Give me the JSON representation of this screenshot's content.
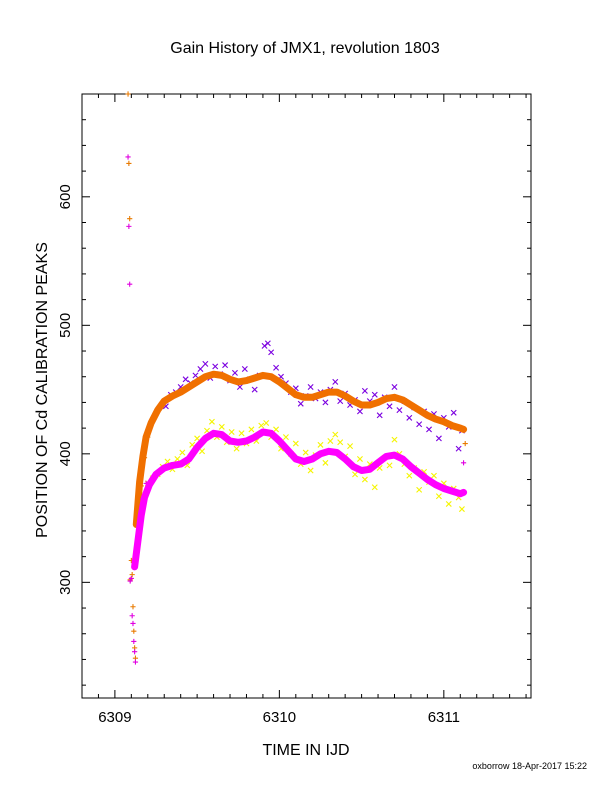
{
  "chart_data": {
    "type": "scatter",
    "title": "Gain History of JMX1, revolution 1803",
    "xlabel": "TIME IN IJD",
    "ylabel": "POSITION OF Cd CALIBRATION PEAKS",
    "xlim": [
      6308.8,
      6311.53
    ],
    "ylim": [
      210,
      680
    ],
    "x_ticks": [
      6309,
      6310,
      6311
    ],
    "x_tick_labels": [
      "6309",
      "6310",
      "6311"
    ],
    "y_ticks": [
      300,
      400,
      500,
      600
    ],
    "y_tick_labels": [
      "300",
      "400",
      "500",
      "600"
    ],
    "grid": false,
    "footer": "oxborrow 18-Apr-2017 15:22",
    "series": [
      {
        "marker": "cross",
        "color": "#7b00e0",
        "points": [
          [
            6309.31,
            437
          ],
          [
            6309.34,
            446
          ],
          [
            6309.37,
            448
          ],
          [
            6309.4,
            452
          ],
          [
            6309.43,
            458
          ],
          [
            6309.46,
            455
          ],
          [
            6309.49,
            461
          ],
          [
            6309.52,
            466
          ],
          [
            6309.55,
            470
          ],
          [
            6309.58,
            459
          ],
          [
            6309.61,
            468
          ],
          [
            6309.64,
            462
          ],
          [
            6309.67,
            469
          ],
          [
            6309.7,
            457
          ],
          [
            6309.73,
            463
          ],
          [
            6309.76,
            452
          ],
          [
            6309.79,
            466
          ],
          [
            6309.82,
            458
          ],
          [
            6309.85,
            450
          ],
          [
            6309.88,
            461
          ],
          [
            6309.91,
            484
          ],
          [
            6309.93,
            486
          ],
          [
            6309.95,
            479
          ],
          [
            6309.98,
            467
          ],
          [
            6310.01,
            460
          ],
          [
            6310.04,
            455
          ],
          [
            6310.07,
            448
          ],
          [
            6310.1,
            451
          ],
          [
            6310.13,
            439
          ],
          [
            6310.16,
            445
          ],
          [
            6310.19,
            452
          ],
          [
            6310.22,
            443
          ],
          [
            6310.25,
            448
          ],
          [
            6310.28,
            440
          ],
          [
            6310.31,
            450
          ],
          [
            6310.34,
            456
          ],
          [
            6310.37,
            441
          ],
          [
            6310.4,
            447
          ],
          [
            6310.43,
            438
          ],
          [
            6310.46,
            442
          ],
          [
            6310.49,
            433
          ],
          [
            6310.52,
            449
          ],
          [
            6310.55,
            441
          ],
          [
            6310.58,
            446
          ],
          [
            6310.61,
            430
          ],
          [
            6310.64,
            444
          ],
          [
            6310.67,
            437
          ],
          [
            6310.7,
            452
          ],
          [
            6310.73,
            434
          ],
          [
            6310.76,
            441
          ],
          [
            6310.79,
            428
          ],
          [
            6310.82,
            436
          ],
          [
            6310.85,
            423
          ],
          [
            6310.88,
            433
          ],
          [
            6310.91,
            419
          ],
          [
            6310.94,
            431
          ],
          [
            6310.97,
            412
          ],
          [
            6311.0,
            428
          ],
          [
            6311.03,
            421
          ],
          [
            6311.06,
            432
          ],
          [
            6311.09,
            404
          ],
          [
            6311.11,
            418
          ]
        ]
      },
      {
        "marker": "plus",
        "color": "#e87a00",
        "points": [
          [
            6309.08,
            680
          ],
          [
            6309.085,
            626
          ],
          [
            6309.09,
            583
          ],
          [
            6309.093,
            302
          ],
          [
            6309.1,
            317
          ],
          [
            6309.105,
            306
          ],
          [
            6309.11,
            281
          ],
          [
            6309.115,
            262
          ],
          [
            6309.12,
            249
          ],
          [
            6309.125,
            241
          ],
          [
            6309.14,
            350
          ],
          [
            6309.16,
            375
          ],
          [
            6309.18,
            397
          ],
          [
            6309.2,
            413
          ],
          [
            6309.22,
            425
          ],
          [
            6311.13,
            408
          ]
        ]
      },
      {
        "marker": "line",
        "color": "#f07000",
        "points": [
          [
            6309.13,
            345
          ],
          [
            6309.15,
            378
          ],
          [
            6309.17,
            398
          ],
          [
            6309.19,
            413
          ],
          [
            6309.22,
            424
          ],
          [
            6309.26,
            434
          ],
          [
            6309.3,
            441
          ],
          [
            6309.35,
            445
          ],
          [
            6309.4,
            448
          ],
          [
            6309.45,
            452
          ],
          [
            6309.5,
            456
          ],
          [
            6309.55,
            460
          ],
          [
            6309.6,
            462
          ],
          [
            6309.65,
            461
          ],
          [
            6309.7,
            458
          ],
          [
            6309.75,
            456
          ],
          [
            6309.8,
            457
          ],
          [
            6309.85,
            459
          ],
          [
            6309.9,
            461
          ],
          [
            6309.95,
            460
          ],
          [
            6310.0,
            456
          ],
          [
            6310.05,
            451
          ],
          [
            6310.1,
            446
          ],
          [
            6310.15,
            444
          ],
          [
            6310.2,
            444
          ],
          [
            6310.25,
            446
          ],
          [
            6310.3,
            448
          ],
          [
            6310.35,
            448
          ],
          [
            6310.4,
            445
          ],
          [
            6310.45,
            441
          ],
          [
            6310.5,
            438
          ],
          [
            6310.55,
            438
          ],
          [
            6310.6,
            440
          ],
          [
            6310.65,
            443
          ],
          [
            6310.7,
            444
          ],
          [
            6310.75,
            442
          ],
          [
            6310.8,
            438
          ],
          [
            6310.85,
            434
          ],
          [
            6310.9,
            430
          ],
          [
            6310.95,
            427
          ],
          [
            6311.0,
            425
          ],
          [
            6311.05,
            422
          ],
          [
            6311.1,
            420
          ],
          [
            6311.12,
            419
          ]
        ]
      },
      {
        "marker": "cross",
        "color": "#f5f500",
        "points": [
          [
            6309.2,
            377
          ],
          [
            6309.23,
            381
          ],
          [
            6309.26,
            384
          ],
          [
            6309.29,
            390
          ],
          [
            6309.32,
            394
          ],
          [
            6309.35,
            388
          ],
          [
            6309.38,
            396
          ],
          [
            6309.41,
            401
          ],
          [
            6309.44,
            391
          ],
          [
            6309.47,
            407
          ],
          [
            6309.5,
            412
          ],
          [
            6309.53,
            402
          ],
          [
            6309.56,
            418
          ],
          [
            6309.59,
            425
          ],
          [
            6309.62,
            413
          ],
          [
            6309.65,
            421
          ],
          [
            6309.68,
            409
          ],
          [
            6309.71,
            417
          ],
          [
            6309.74,
            404
          ],
          [
            6309.77,
            416
          ],
          [
            6309.8,
            408
          ],
          [
            6309.83,
            419
          ],
          [
            6309.86,
            410
          ],
          [
            6309.89,
            422
          ],
          [
            6309.92,
            424
          ],
          [
            6309.95,
            413
          ],
          [
            6309.98,
            419
          ],
          [
            6310.01,
            404
          ],
          [
            6310.04,
            413
          ],
          [
            6310.07,
            400
          ],
          [
            6310.1,
            408
          ],
          [
            6310.13,
            392
          ],
          [
            6310.16,
            401
          ],
          [
            6310.19,
            387
          ],
          [
            6310.22,
            399
          ],
          [
            6310.25,
            407
          ],
          [
            6310.28,
            393
          ],
          [
            6310.31,
            410
          ],
          [
            6310.34,
            415
          ],
          [
            6310.37,
            409
          ],
          [
            6310.4,
            398
          ],
          [
            6310.43,
            406
          ],
          [
            6310.46,
            384
          ],
          [
            6310.49,
            396
          ],
          [
            6310.52,
            380
          ],
          [
            6310.55,
            392
          ],
          [
            6310.58,
            374
          ],
          [
            6310.61,
            389
          ],
          [
            6310.64,
            397
          ],
          [
            6310.67,
            391
          ],
          [
            6310.7,
            411
          ],
          [
            6310.73,
            400
          ],
          [
            6310.76,
            392
          ],
          [
            6310.79,
            383
          ],
          [
            6310.82,
            389
          ],
          [
            6310.85,
            372
          ],
          [
            6310.88,
            386
          ],
          [
            6310.91,
            378
          ],
          [
            6310.94,
            383
          ],
          [
            6310.97,
            367
          ],
          [
            6311.0,
            377
          ],
          [
            6311.03,
            361
          ],
          [
            6311.06,
            373
          ],
          [
            6311.09,
            366
          ],
          [
            6311.11,
            357
          ]
        ]
      },
      {
        "marker": "plus",
        "color": "#e000e0",
        "points": [
          [
            6309.08,
            631
          ],
          [
            6309.085,
            577
          ],
          [
            6309.09,
            532
          ],
          [
            6309.093,
            301
          ],
          [
            6309.1,
            303
          ],
          [
            6309.105,
            274
          ],
          [
            6309.11,
            268
          ],
          [
            6309.115,
            254
          ],
          [
            6309.12,
            246
          ],
          [
            6309.125,
            238
          ],
          [
            6309.13,
            322
          ],
          [
            6309.15,
            344
          ],
          [
            6309.17,
            365
          ],
          [
            6309.19,
            377
          ],
          [
            6311.12,
            393
          ]
        ]
      },
      {
        "marker": "line",
        "color": "#ff00ff",
        "points": [
          [
            6309.12,
            312
          ],
          [
            6309.14,
            332
          ],
          [
            6309.16,
            352
          ],
          [
            6309.18,
            366
          ],
          [
            6309.21,
            376
          ],
          [
            6309.25,
            384
          ],
          [
            6309.3,
            389
          ],
          [
            6309.35,
            391
          ],
          [
            6309.4,
            392
          ],
          [
            6309.45,
            396
          ],
          [
            6309.5,
            405
          ],
          [
            6309.55,
            412
          ],
          [
            6309.6,
            416
          ],
          [
            6309.65,
            415
          ],
          [
            6309.7,
            410
          ],
          [
            6309.75,
            409
          ],
          [
            6309.8,
            410
          ],
          [
            6309.85,
            413
          ],
          [
            6309.9,
            417
          ],
          [
            6309.95,
            416
          ],
          [
            6310.0,
            410
          ],
          [
            6310.05,
            403
          ],
          [
            6310.1,
            396
          ],
          [
            6310.15,
            394
          ],
          [
            6310.2,
            396
          ],
          [
            6310.25,
            400
          ],
          [
            6310.3,
            402
          ],
          [
            6310.35,
            401
          ],
          [
            6310.4,
            396
          ],
          [
            6310.45,
            390
          ],
          [
            6310.5,
            387
          ],
          [
            6310.55,
            388
          ],
          [
            6310.6,
            393
          ],
          [
            6310.65,
            398
          ],
          [
            6310.7,
            399
          ],
          [
            6310.75,
            396
          ],
          [
            6310.8,
            390
          ],
          [
            6310.85,
            385
          ],
          [
            6310.9,
            380
          ],
          [
            6310.95,
            376
          ],
          [
            6311.0,
            373
          ],
          [
            6311.05,
            371
          ],
          [
            6311.1,
            369
          ],
          [
            6311.12,
            370
          ]
        ]
      }
    ]
  }
}
